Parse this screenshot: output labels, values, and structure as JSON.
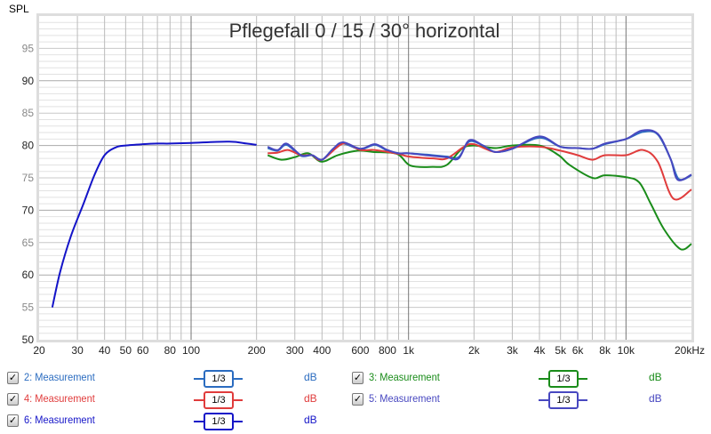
{
  "chart_data": {
    "type": "line",
    "title": "Pflegefall 0 / 15 / 30° horizontal",
    "ylabel": "SPL",
    "xscale": "log",
    "xlim": [
      20,
      20000
    ],
    "ylim": [
      50,
      100
    ],
    "grid": true,
    "x_tick_labels": [
      {
        "v": 20,
        "t": "20"
      },
      {
        "v": 30,
        "t": "30"
      },
      {
        "v": 40,
        "t": "40"
      },
      {
        "v": 50,
        "t": "50"
      },
      {
        "v": 60,
        "t": "60"
      },
      {
        "v": 80,
        "t": "80"
      },
      {
        "v": 100,
        "t": "100"
      },
      {
        "v": 200,
        "t": "200"
      },
      {
        "v": 300,
        "t": "300"
      },
      {
        "v": 400,
        "t": "400"
      },
      {
        "v": 600,
        "t": "600"
      },
      {
        "v": 800,
        "t": "800"
      },
      {
        "v": 1000,
        "t": "1k"
      },
      {
        "v": 2000,
        "t": "2k"
      },
      {
        "v": 3000,
        "t": "3k"
      },
      {
        "v": 4000,
        "t": "4k"
      },
      {
        "v": 5000,
        "t": "5k"
      },
      {
        "v": 6000,
        "t": "6k"
      },
      {
        "v": 8000,
        "t": "8k"
      },
      {
        "v": 10000,
        "t": "10k"
      },
      {
        "v": 20000,
        "t": "20kHz"
      }
    ],
    "y_tick_labels": [
      50,
      55,
      60,
      65,
      70,
      75,
      80,
      85,
      90,
      95
    ],
    "series": [
      {
        "name": "2: Measurement",
        "color": "#2b6cc0",
        "x": [
          225,
          250,
          275,
          320,
          360,
          400,
          450,
          500,
          600,
          700,
          800,
          900,
          1000,
          1200,
          1500,
          1700,
          1900,
          2200,
          2500,
          3000,
          4000,
          5000,
          6000,
          7000,
          8000,
          10000,
          12000,
          14000,
          16000,
          17500,
          20000
        ],
        "y": [
          79.6,
          79.2,
          80.1,
          78.4,
          78.5,
          77.8,
          79.4,
          80.3,
          79.4,
          80.1,
          79.2,
          78.8,
          78.8,
          78.6,
          78.3,
          78.2,
          80.6,
          80,
          79,
          79.5,
          81.2,
          79.8,
          79.6,
          79.5,
          80.2,
          81,
          82.1,
          81.7,
          78,
          74.8,
          75.4
        ]
      },
      {
        "name": "3: Measurement",
        "color": "#1a8c1a",
        "x": [
          225,
          260,
          300,
          346,
          398,
          472,
          585,
          687,
          885,
          1020,
          1290,
          1500,
          1760,
          2000,
          2500,
          3000,
          4000,
          4900,
          5500,
          7000,
          8000,
          10000,
          11500,
          13000,
          15000,
          17800,
          20000
        ],
        "y": [
          78.5,
          77.8,
          78.2,
          78.8,
          77.5,
          78.5,
          79.2,
          79,
          78.7,
          76.9,
          76.7,
          77,
          79.5,
          80,
          79.6,
          80,
          80,
          78.5,
          77,
          75,
          75.4,
          75.1,
          74.3,
          71,
          67,
          64,
          64.8
        ]
      },
      {
        "name": "4: Measurement",
        "color": "#e03c3c",
        "x": [
          225,
          250,
          280,
          320,
          360,
          400,
          500,
          600,
          700,
          900,
          1000,
          1300,
          1500,
          1800,
          2000,
          2500,
          3000,
          4000,
          5000,
          6000,
          7000,
          8000,
          10000,
          12000,
          14000,
          16500,
          20000
        ],
        "y": [
          78.8,
          78.9,
          79.3,
          78.5,
          78.5,
          77.8,
          80.3,
          79.3,
          79.3,
          78.7,
          78.3,
          78,
          78,
          79.8,
          80.2,
          79,
          79.7,
          79.8,
          79.2,
          78.5,
          77.8,
          78.5,
          78.5,
          79.3,
          77.5,
          71.8,
          73.2
        ]
      },
      {
        "name": "5: Measurement",
        "color": "#4848c0",
        "x": [
          225,
          250,
          275,
          320,
          360,
          400,
          450,
          500,
          600,
          700,
          800,
          900,
          1000,
          1200,
          1500,
          1700,
          1900,
          2200,
          2500,
          3000,
          4000,
          5000,
          6000,
          7000,
          8000,
          10000,
          11800,
          14000,
          16000,
          17300,
          20000
        ],
        "y": [
          79.8,
          79.3,
          80.3,
          78.5,
          78.5,
          77.8,
          79.5,
          80.5,
          79.5,
          80.2,
          79.3,
          78.8,
          78.8,
          78.5,
          78.2,
          78,
          80.8,
          80,
          79,
          79.5,
          81.4,
          79.8,
          79.6,
          79.5,
          80.3,
          81,
          82.3,
          81.8,
          78,
          74.7,
          75.5
        ]
      },
      {
        "name": "6: Measurement",
        "color": "#1414c8",
        "x": [
          23,
          25,
          28,
          32,
          36,
          40,
          45,
          50,
          60,
          70,
          80,
          100,
          150,
          180,
          200
        ],
        "y": [
          55,
          60.5,
          66,
          71,
          75.5,
          78.5,
          79.7,
          80,
          80.2,
          80.3,
          80.3,
          80.4,
          80.6,
          80.3,
          80.1
        ]
      }
    ]
  },
  "legend": [
    {
      "label": "2: Measurement",
      "smoothing": "1/3",
      "unit": "dB",
      "color": "#2b6cc0",
      "checked": true
    },
    {
      "label": "3: Measurement",
      "smoothing": "1/3",
      "unit": "dB",
      "color": "#1a8c1a",
      "checked": true
    },
    {
      "label": "4: Measurement",
      "smoothing": "1/3",
      "unit": "dB",
      "color": "#e03c3c",
      "checked": true
    },
    {
      "label": "5: Measurement",
      "smoothing": "1/3",
      "unit": "dB",
      "color": "#4848c0",
      "checked": true
    },
    {
      "label": "6: Measurement",
      "smoothing": "1/3",
      "unit": "dB",
      "color": "#1414c8",
      "checked": true
    }
  ],
  "checkmark": "✓"
}
